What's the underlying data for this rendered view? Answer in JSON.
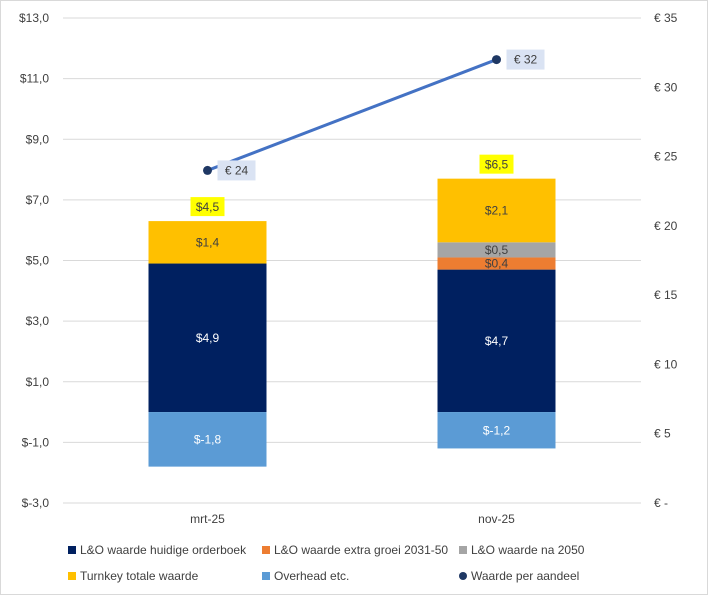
{
  "chart_data": {
    "type": "bar",
    "stacked": true,
    "categories": [
      "mrt-25",
      "nov-25"
    ],
    "series": [
      {
        "name": "L&O waarde huidige orderboek",
        "values": [
          4.9,
          4.7
        ],
        "color": "#002060",
        "labels": [
          "$4,9",
          "$4,7"
        ]
      },
      {
        "name": "L&O waarde extra groei 2031-50",
        "values": [
          0,
          0.4
        ],
        "color": "#ED7D31",
        "labels": [
          "",
          "$0,4"
        ]
      },
      {
        "name": "L&O waarde na 2050",
        "values": [
          0,
          0.5
        ],
        "color": "#A5A5A5",
        "labels": [
          "",
          "$0,5"
        ]
      },
      {
        "name": "Turnkey totale waarde",
        "values": [
          1.4,
          2.1
        ],
        "color": "#FFC000",
        "labels": [
          "$1,4",
          "$2,1"
        ]
      },
      {
        "name": "Overhead etc.",
        "values": [
          -1.8,
          -1.2
        ],
        "color": "#5B9BD5",
        "labels": [
          "$-1,8",
          "$-1,2"
        ]
      }
    ],
    "totals": {
      "values": [
        4.5,
        6.5
      ],
      "labels": [
        "$4,5",
        "$6,5"
      ],
      "highlight": "#FFFF00"
    },
    "line_series": {
      "name": "Waarde per aandeel",
      "values": [
        24,
        32
      ],
      "labels": [
        "€ 24",
        "€ 32"
      ],
      "color": "#4472C4",
      "marker_color": "#1F3864",
      "axis": "secondary"
    },
    "y_left": {
      "range": [
        -3,
        13
      ],
      "ticks": [
        "$-3,0",
        "$-1,0",
        "$1,0",
        "$3,0",
        "$5,0",
        "$7,0",
        "$9,0",
        "$11,0",
        "$13,0"
      ]
    },
    "y_right": {
      "range": [
        0,
        35
      ],
      "ticks": [
        "€ -",
        "€ 5",
        "€ 10",
        "€ 15",
        "€ 20",
        "€ 25",
        "€ 30",
        "€ 35"
      ]
    },
    "grid": true,
    "legend": "bottom",
    "title": "",
    "xlabel": "",
    "ylabel": ""
  }
}
